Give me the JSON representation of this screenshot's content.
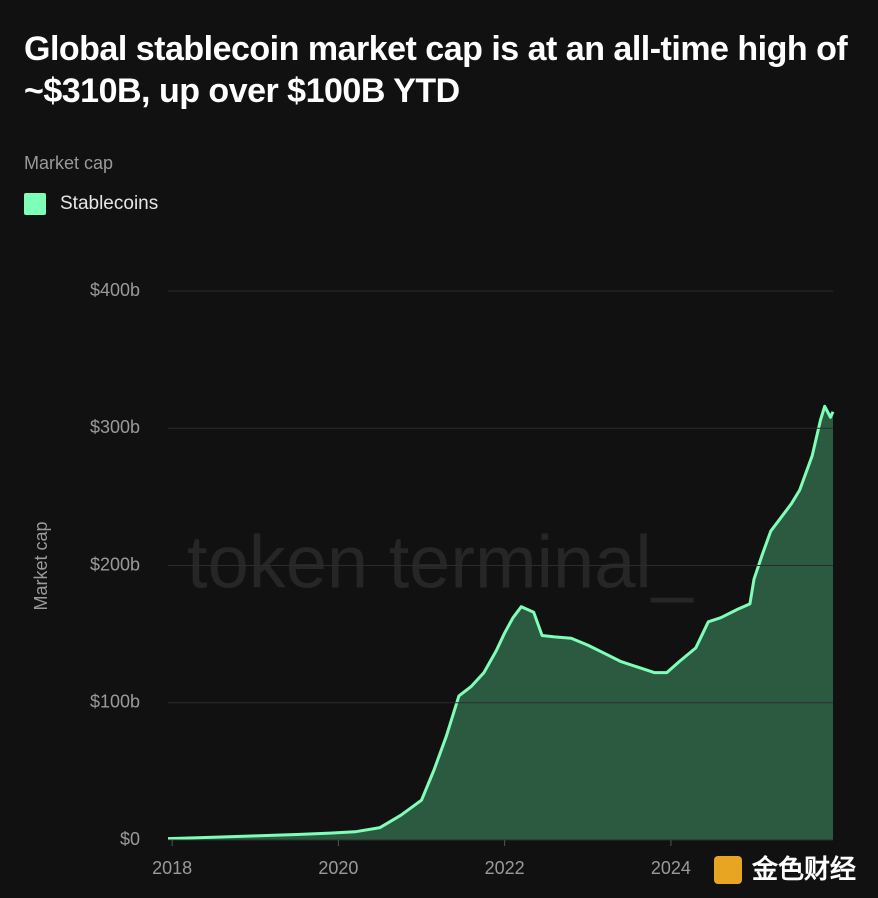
{
  "chart_data": {
    "type": "area",
    "title": "Global stablecoin market cap is at an all-time high of ~$310B, up over $100B YTD",
    "legend_title": "Market cap",
    "y_label": "Market cap",
    "watermark": "token terminal_",
    "source_logo": "金色财经",
    "grid": true,
    "xlim": [
      2017.95,
      2025.95
    ],
    "xticks": [
      2018,
      2020,
      2022,
      2024
    ],
    "ylim": [
      0,
      400
    ],
    "yticks": [
      {
        "value": 0,
        "label": "$0"
      },
      {
        "value": 100,
        "label": "$100b"
      },
      {
        "value": 200,
        "label": "$200b"
      },
      {
        "value": 300,
        "label": "$300b"
      },
      {
        "value": 400,
        "label": "$400b"
      }
    ],
    "x": [
      2017.95,
      2018.5,
      2019.0,
      2019.5,
      2019.9,
      2020.2,
      2020.5,
      2020.75,
      2021.0,
      2021.15,
      2021.3,
      2021.45,
      2021.6,
      2021.75,
      2021.9,
      2022.0,
      2022.1,
      2022.2,
      2022.35,
      2022.45,
      2022.6,
      2022.8,
      2023.0,
      2023.2,
      2023.4,
      2023.6,
      2023.8,
      2023.95,
      2024.1,
      2024.3,
      2024.45,
      2024.6,
      2024.8,
      2024.95,
      2025.0,
      2025.1,
      2025.2,
      2025.3,
      2025.45,
      2025.55,
      2025.7,
      2025.8,
      2025.85,
      2025.92,
      2025.95
    ],
    "series": [
      {
        "name": "Stablecoins",
        "color": "#7dffb8",
        "fill": "#2c5a41",
        "values": [
          1,
          2,
          3,
          4,
          5,
          6,
          9,
          18,
          29,
          51,
          76,
          105,
          112,
          122,
          138,
          151,
          162,
          170,
          166,
          149,
          148,
          147,
          142,
          136,
          130,
          126,
          122,
          122,
          130,
          140,
          159,
          162,
          168,
          172,
          190,
          208,
          225,
          233,
          245,
          255,
          280,
          306,
          316,
          308,
          312
        ]
      }
    ]
  }
}
